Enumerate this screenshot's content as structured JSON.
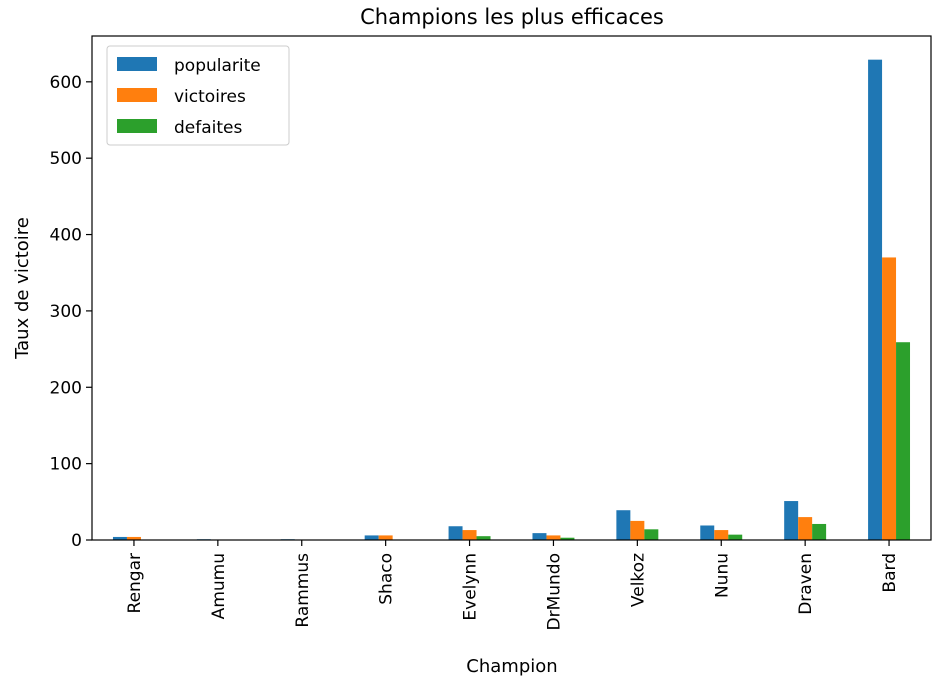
{
  "chart_data": {
    "type": "bar",
    "title": "Champions les plus efficaces",
    "xlabel": "Champion",
    "ylabel": "Taux de victoire",
    "categories": [
      "Rengar",
      "Amumu",
      "Rammus",
      "Shaco",
      "Evelynn",
      "DrMundo",
      "Velkoz",
      "Nunu",
      "Draven",
      "Bard"
    ],
    "series": [
      {
        "name": "popularite",
        "color": "#1f77b4",
        "values": [
          4,
          1,
          1,
          6,
          18,
          9,
          39,
          19,
          51,
          629
        ]
      },
      {
        "name": "victoires",
        "color": "#ff7f0e",
        "values": [
          4,
          0,
          0,
          6,
          13,
          6,
          25,
          13,
          30,
          370
        ]
      },
      {
        "name": "defaites",
        "color": "#2ca02c",
        "values": [
          0,
          0,
          0,
          0,
          5,
          3,
          14,
          7,
          21,
          259
        ]
      }
    ],
    "ylim": [
      0,
      660
    ],
    "yticks": [
      0,
      100,
      200,
      300,
      400,
      500,
      600
    ],
    "legend_position": "top-left",
    "grid": false
  }
}
